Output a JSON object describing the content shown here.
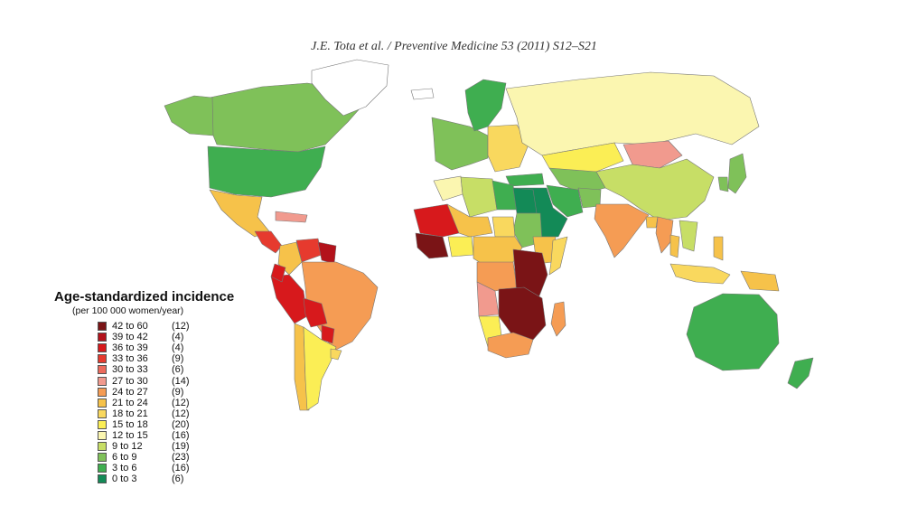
{
  "header": {
    "citation": "J.E. Tota et al. / Preventive Medicine 53 (2011) S12–S21"
  },
  "legend": {
    "title": "Age-standardized incidence",
    "subtitle": "(per 100 000 women/year)",
    "items": [
      {
        "range": "42 to 60",
        "count": "(12)",
        "color": "#7a1416"
      },
      {
        "range": "39 to 42",
        "count": "(4)",
        "color": "#b3121b"
      },
      {
        "range": "36 to 39",
        "count": "(4)",
        "color": "#d7191c"
      },
      {
        "range": "33 to 36",
        "count": "(9)",
        "color": "#e63a2e"
      },
      {
        "range": "30 to 33",
        "count": "(6)",
        "color": "#ec6a5c"
      },
      {
        "range": "27 to 30",
        "count": "(14)",
        "color": "#f19a8e"
      },
      {
        "range": "24 to 27",
        "count": "(9)",
        "color": "#f59c54"
      },
      {
        "range": "21 to 24",
        "count": "(12)",
        "color": "#f6c24a"
      },
      {
        "range": "18 to 21",
        "count": "(12)",
        "color": "#f9d85e"
      },
      {
        "range": "15 to 18",
        "count": "(20)",
        "color": "#fbee55"
      },
      {
        "range": "12 to 15",
        "count": "(16)",
        "color": "#fbf6b0"
      },
      {
        "range": "9 to 12",
        "count": "(19)",
        "color": "#c7de66"
      },
      {
        "range": "6 to 9",
        "count": "(23)",
        "color": "#7fc159"
      },
      {
        "range": "3 to 6",
        "count": "(16)",
        "color": "#3fae50"
      },
      {
        "range": "0 to 3",
        "count": "(6)",
        "color": "#138a57"
      }
    ]
  },
  "map": {
    "ocean_color": "#ffffff",
    "border_color": "#777777",
    "regions": [
      {
        "name": "Canada",
        "color": "#7fc159"
      },
      {
        "name": "Alaska",
        "color": "#7fc159"
      },
      {
        "name": "Greenland",
        "color": "#ffffff"
      },
      {
        "name": "USA",
        "color": "#3fae50"
      },
      {
        "name": "Mexico",
        "color": "#f6c24a"
      },
      {
        "name": "Central America",
        "color": "#e63a2e"
      },
      {
        "name": "Caribbean",
        "color": "#f19a8e"
      },
      {
        "name": "Venezuela",
        "color": "#e63a2e"
      },
      {
        "name": "Colombia",
        "color": "#f6c24a"
      },
      {
        "name": "Guyanas",
        "color": "#b3121b"
      },
      {
        "name": "Peru",
        "color": "#d7191c"
      },
      {
        "name": "Ecuador",
        "color": "#d7191c"
      },
      {
        "name": "Brazil",
        "color": "#f59c54"
      },
      {
        "name": "Bolivia",
        "color": "#d7191c"
      },
      {
        "name": "Paraguay",
        "color": "#d7191c"
      },
      {
        "name": "Chile",
        "color": "#f6c24a"
      },
      {
        "name": "Argentina",
        "color": "#fbee55"
      },
      {
        "name": "Uruguay",
        "color": "#f9d85e"
      },
      {
        "name": "Iceland",
        "color": "#ffffff"
      },
      {
        "name": "Western Europe",
        "color": "#7fc159"
      },
      {
        "name": "Scandinavia",
        "color": "#3fae50"
      },
      {
        "name": "Eastern Europe",
        "color": "#f9d85e"
      },
      {
        "name": "Russia",
        "color": "#fbf6b0"
      },
      {
        "name": "Kazakhstan",
        "color": "#fbee55"
      },
      {
        "name": "Mongolia",
        "color": "#f19a8e"
      },
      {
        "name": "China",
        "color": "#c7de66"
      },
      {
        "name": "Korea",
        "color": "#7fc159"
      },
      {
        "name": "Japan",
        "color": "#7fc159"
      },
      {
        "name": "Central Asia",
        "color": "#7fc159"
      },
      {
        "name": "Turkey",
        "color": "#3fae50"
      },
      {
        "name": "Iran",
        "color": "#3fae50"
      },
      {
        "name": "Middle East",
        "color": "#138a57"
      },
      {
        "name": "Afghanistan",
        "color": "#7fc159"
      },
      {
        "name": "India",
        "color": "#f59c54"
      },
      {
        "name": "Bangladesh",
        "color": "#f6c24a"
      },
      {
        "name": "Myanmar",
        "color": "#f59c54"
      },
      {
        "name": "Thailand",
        "color": "#f6c24a"
      },
      {
        "name": "Indochina",
        "color": "#c7de66"
      },
      {
        "name": "Indonesia",
        "color": "#f9d85e"
      },
      {
        "name": "Philippines",
        "color": "#f6c24a"
      },
      {
        "name": "Papua New Guinea",
        "color": "#f6c24a"
      },
      {
        "name": "Australia",
        "color": "#3fae50"
      },
      {
        "name": "New Zealand",
        "color": "#3fae50"
      },
      {
        "name": "Morocco",
        "color": "#fbf6b0"
      },
      {
        "name": "Algeria",
        "color": "#c7de66"
      },
      {
        "name": "Libya",
        "color": "#3fae50"
      },
      {
        "name": "Egypt",
        "color": "#138a57"
      },
      {
        "name": "Sudan",
        "color": "#7fc159"
      },
      {
        "name": "West Africa",
        "color": "#d7191c"
      },
      {
        "name": "Guinea coast",
        "color": "#7a1416"
      },
      {
        "name": "Mali-Niger",
        "color": "#f6c24a"
      },
      {
        "name": "Nigeria",
        "color": "#fbee55"
      },
      {
        "name": "Chad",
        "color": "#f9d85e"
      },
      {
        "name": "Ethiopia",
        "color": "#f6c24a"
      },
      {
        "name": "Somalia",
        "color": "#f9d85e"
      },
      {
        "name": "Central Africa",
        "color": "#f6c24a"
      },
      {
        "name": "Congo",
        "color": "#f59c54"
      },
      {
        "name": "East Africa",
        "color": "#7a1416"
      },
      {
        "name": "Angola",
        "color": "#f19a8e"
      },
      {
        "name": "Zambia",
        "color": "#7a1416"
      },
      {
        "name": "Namibia",
        "color": "#fbee55"
      },
      {
        "name": "South Africa",
        "color": "#f59c54"
      },
      {
        "name": "Madagascar",
        "color": "#f59c54"
      }
    ]
  }
}
